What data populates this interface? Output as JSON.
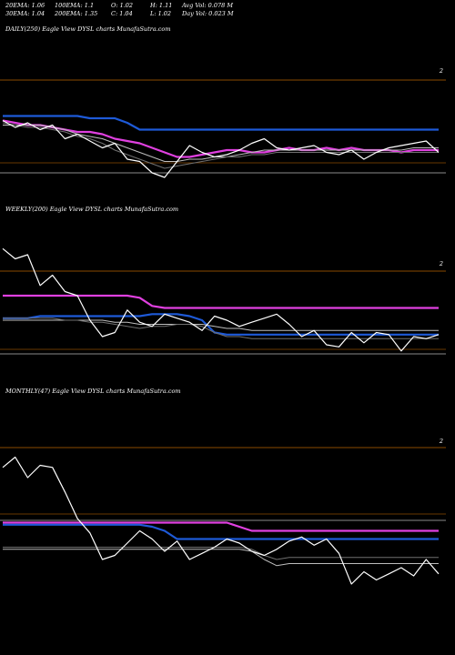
{
  "header": {
    "row1": [
      "20EMA: 1.06",
      "100EMA: 1.1",
      "O: 1.02",
      "H: 1.11",
      "Avg Vol: 0.078  M"
    ],
    "row2": [
      "30EMA: 1.04",
      "200EMA: 1.35",
      "C: 1.04",
      "L: 1.02",
      "Day Vol: 0.023  M"
    ]
  },
  "colors": {
    "background": "#000000",
    "price": "#ffffff",
    "ema_fast_pink": "#e040e0",
    "ema_slow_blue": "#1e5ad8",
    "ema_grey": "#bdbdbd",
    "ema_dark": "#707070",
    "guide_orange": "#8a4a00",
    "guide_grey": "#b8b8b8"
  },
  "chart_data": [
    {
      "type": "line",
      "title": "DAILY(250) Eagle  View  DYSL  charts MunafaSutra.com",
      "axis_label": "2",
      "series": [
        {
          "values": [
            1.18,
            1.17,
            1.16,
            1.16,
            1.15,
            1.14,
            1.13,
            1.13,
            1.12,
            1.1,
            1.09,
            1.08,
            1.06,
            1.04,
            1.02,
            1.02,
            1.03,
            1.04,
            1.05,
            1.05,
            1.04,
            1.04,
            1.05,
            1.06,
            1.05,
            1.05,
            1.06,
            1.05,
            1.06,
            1.05,
            1.05,
            1.05,
            1.04,
            1.05,
            1.05,
            1.05
          ]
        },
        {
          "values": [
            1.2,
            1.2,
            1.2,
            1.2,
            1.2,
            1.2,
            1.2,
            1.19,
            1.19,
            1.19,
            1.17,
            1.14,
            1.14,
            1.14,
            1.14,
            1.14,
            1.14,
            1.14,
            1.14,
            1.14,
            1.14,
            1.14,
            1.14,
            1.14,
            1.14,
            1.14,
            1.14,
            1.14,
            1.14,
            1.14,
            1.14,
            1.14,
            1.14,
            1.14,
            1.14,
            1.14
          ]
        },
        {
          "values": [
            1.16,
            1.16,
            1.16,
            1.16,
            1.15,
            1.14,
            1.12,
            1.11,
            1.1,
            1.08,
            1.06,
            1.04,
            1.02,
            1.0,
            1.0,
            1.01,
            1.01,
            1.02,
            1.02,
            1.03,
            1.04,
            1.05,
            1.05,
            1.05,
            1.05,
            1.05,
            1.05,
            1.05,
            1.05,
            1.05,
            1.05,
            1.05,
            1.05,
            1.06,
            1.06,
            1.06
          ]
        },
        {
          "values": [
            1.17,
            1.16,
            1.15,
            1.15,
            1.14,
            1.13,
            1.11,
            1.1,
            1.08,
            1.05,
            1.03,
            1.01,
            0.99,
            0.97,
            0.98,
            0.99,
            1.0,
            1.01,
            1.02,
            1.02,
            1.03,
            1.03,
            1.04,
            1.04,
            1.04,
            1.04,
            1.04,
            1.04,
            1.04,
            1.04,
            1.04,
            1.04,
            1.04,
            1.04,
            1.04,
            1.04
          ]
        },
        {
          "values": [
            1.18,
            1.15,
            1.17,
            1.14,
            1.16,
            1.1,
            1.12,
            1.09,
            1.06,
            1.08,
            1.01,
            1.0,
            0.95,
            0.93,
            1.0,
            1.07,
            1.04,
            1.02,
            1.03,
            1.05,
            1.08,
            1.1,
            1.06,
            1.05,
            1.06,
            1.07,
            1.04,
            1.03,
            1.05,
            1.01,
            1.04,
            1.06,
            1.07,
            1.08,
            1.09,
            1.04
          ]
        }
      ]
    },
    {
      "type": "line",
      "title": "WEEKLY(200) Eagle  View  DYSL  charts MunafaSutra.com",
      "axis_label": "2",
      "series": [
        {
          "values": [
            1.25,
            1.25,
            1.25,
            1.25,
            1.25,
            1.25,
            1.25,
            1.25,
            1.25,
            1.25,
            1.25,
            1.24,
            1.2,
            1.19,
            1.19,
            1.19,
            1.19,
            1.19,
            1.19,
            1.19,
            1.19,
            1.19,
            1.19,
            1.19,
            1.19,
            1.19,
            1.19,
            1.19,
            1.19,
            1.19,
            1.19,
            1.19,
            1.19,
            1.19,
            1.19,
            1.19
          ]
        },
        {
          "values": [
            1.14,
            1.14,
            1.14,
            1.15,
            1.15,
            1.15,
            1.15,
            1.15,
            1.15,
            1.15,
            1.15,
            1.15,
            1.16,
            1.16,
            1.16,
            1.15,
            1.13,
            1.07,
            1.06,
            1.06,
            1.06,
            1.06,
            1.06,
            1.06,
            1.06,
            1.06,
            1.06,
            1.06,
            1.06,
            1.06,
            1.06,
            1.06,
            1.06,
            1.06,
            1.06,
            1.06
          ]
        },
        {
          "values": [
            1.13,
            1.13,
            1.13,
            1.13,
            1.13,
            1.13,
            1.13,
            1.13,
            1.13,
            1.12,
            1.12,
            1.11,
            1.11,
            1.11,
            1.11,
            1.11,
            1.11,
            1.1,
            1.09,
            1.09,
            1.08,
            1.08,
            1.08,
            1.08,
            1.08,
            1.08,
            1.08,
            1.08,
            1.08,
            1.08,
            1.08,
            1.08,
            1.08,
            1.08,
            1.08,
            1.08
          ]
        },
        {
          "values": [
            1.14,
            1.14,
            1.14,
            1.14,
            1.14,
            1.13,
            1.13,
            1.12,
            1.12,
            1.11,
            1.1,
            1.09,
            1.1,
            1.1,
            1.11,
            1.11,
            1.1,
            1.07,
            1.05,
            1.05,
            1.04,
            1.04,
            1.04,
            1.04,
            1.04,
            1.04,
            1.04,
            1.04,
            1.04,
            1.04,
            1.04,
            1.04,
            1.04,
            1.04,
            1.04,
            1.04
          ]
        },
        {
          "values": [
            1.48,
            1.43,
            1.45,
            1.3,
            1.35,
            1.27,
            1.25,
            1.13,
            1.05,
            1.07,
            1.18,
            1.12,
            1.1,
            1.16,
            1.14,
            1.12,
            1.08,
            1.15,
            1.13,
            1.1,
            1.12,
            1.14,
            1.16,
            1.11,
            1.05,
            1.08,
            1.01,
            1.0,
            1.07,
            1.02,
            1.07,
            1.06,
            0.98,
            1.05,
            1.04,
            1.06
          ]
        }
      ]
    },
    {
      "type": "line",
      "title": "MONTHLY(47) Eagle  View  DYSL  charts MunafaSutra.com",
      "axis_label": "2",
      "series": [
        {
          "values": [
            1.28,
            1.28,
            1.28,
            1.28,
            1.28,
            1.28,
            1.28,
            1.28,
            1.28,
            1.28,
            1.28,
            1.28,
            1.28,
            1.28,
            1.28,
            1.28,
            1.28,
            1.28,
            1.28,
            1.26,
            1.24,
            1.24,
            1.24,
            1.24,
            1.24,
            1.24,
            1.24,
            1.24,
            1.24,
            1.24,
            1.24,
            1.24,
            1.24,
            1.24,
            1.24,
            1.24
          ]
        },
        {
          "values": [
            1.27,
            1.27,
            1.27,
            1.27,
            1.27,
            1.27,
            1.27,
            1.27,
            1.27,
            1.27,
            1.27,
            1.27,
            1.26,
            1.24,
            1.2,
            1.2,
            1.2,
            1.2,
            1.2,
            1.2,
            1.2,
            1.2,
            1.2,
            1.2,
            1.2,
            1.2,
            1.2,
            1.2,
            1.2,
            1.2,
            1.2,
            1.2,
            1.2,
            1.2,
            1.2,
            1.2
          ]
        },
        {
          "values": [
            1.15,
            1.15,
            1.15,
            1.15,
            1.15,
            1.15,
            1.15,
            1.15,
            1.15,
            1.15,
            1.15,
            1.15,
            1.15,
            1.15,
            1.15,
            1.15,
            1.15,
            1.15,
            1.15,
            1.15,
            1.14,
            1.1,
            1.07,
            1.08,
            1.08,
            1.08,
            1.08,
            1.08,
            1.08,
            1.08,
            1.08,
            1.08,
            1.08,
            1.08,
            1.08,
            1.08
          ]
        },
        {
          "values": [
            1.16,
            1.16,
            1.16,
            1.16,
            1.16,
            1.16,
            1.16,
            1.16,
            1.16,
            1.16,
            1.16,
            1.16,
            1.16,
            1.16,
            1.16,
            1.16,
            1.16,
            1.16,
            1.16,
            1.16,
            1.15,
            1.12,
            1.1,
            1.11,
            1.11,
            1.11,
            1.11,
            1.11,
            1.11,
            1.11,
            1.11,
            1.11,
            1.11,
            1.11,
            1.11,
            1.11
          ]
        },
        {
          "values": [
            1.55,
            1.6,
            1.5,
            1.56,
            1.55,
            1.43,
            1.3,
            1.23,
            1.1,
            1.12,
            1.18,
            1.24,
            1.2,
            1.14,
            1.19,
            1.1,
            1.13,
            1.16,
            1.2,
            1.18,
            1.14,
            1.12,
            1.15,
            1.19,
            1.21,
            1.17,
            1.2,
            1.13,
            0.98,
            1.04,
            1.0,
            1.03,
            1.06,
            1.02,
            1.1,
            1.03
          ]
        }
      ]
    }
  ]
}
